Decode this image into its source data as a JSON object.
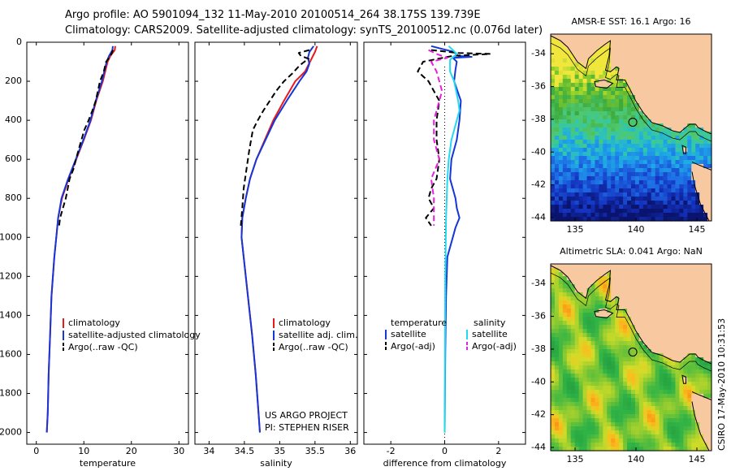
{
  "header": {
    "line1": "Argo profile: AO 5901094_132 11-May-2010 20100514_264 38.175S 139.739E",
    "line2": "Climatology: CARS2009. Satellite-adjusted climatology: synTS_20100512.nc (0.076d later)"
  },
  "stamp": "CSIRO 17-May-2010 10:31:53",
  "colors": {
    "climatology": "#e8191c",
    "satellite": "#1536d8",
    "argo": "#000000",
    "sal_satellite": "#22d9f0",
    "sal_argo": "#e81ee0",
    "land": "#f8c9a0"
  },
  "chart_data": [
    {
      "type": "line",
      "panel": "temperature",
      "xlabel": "temperature",
      "ylabel": "",
      "xlim": [
        -2,
        32
      ],
      "ylim": [
        2060,
        0
      ],
      "y_reversed": true,
      "xticks": [
        "0",
        "10",
        "20",
        "30"
      ],
      "yticks": [
        "0",
        "200",
        "400",
        "600",
        "800",
        "1000",
        "1200",
        "1400",
        "1600",
        "1800",
        "2000"
      ],
      "legend": [
        "climatology",
        "satellite-adjusted climatology",
        "Argo(..raw -QC)"
      ],
      "series": [
        {
          "name": "climatology",
          "color": "#e8191c",
          "dash": "",
          "x": [
            16.6,
            16.5,
            15.6,
            15.0,
            14.0,
            12.6,
            11.5,
            10.0,
            8.4,
            6.8,
            5.4,
            4.6,
            4.2,
            3.8,
            3.2,
            2.9,
            2.6,
            2.4,
            2.2
          ],
          "y": [
            20,
            40,
            70,
            100,
            200,
            300,
            400,
            500,
            600,
            700,
            800,
            900,
            1000,
            1100,
            1300,
            1500,
            1700,
            1900,
            2000
          ]
        },
        {
          "name": "satellite-adjusted climatology",
          "color": "#1536d8",
          "dash": "",
          "x": [
            16.1,
            16.0,
            15.3,
            14.8,
            13.8,
            12.5,
            11.4,
            9.9,
            8.3,
            6.7,
            5.3,
            4.6,
            4.2,
            3.8,
            3.2,
            2.9,
            2.6,
            2.4,
            2.2
          ],
          "y": [
            20,
            40,
            70,
            100,
            200,
            300,
            400,
            500,
            600,
            700,
            800,
            900,
            1000,
            1100,
            1300,
            1500,
            1700,
            1900,
            2000
          ]
        },
        {
          "name": "Argo(..raw -QC)",
          "color": "#000000",
          "dash": "7,4",
          "x": [
            16.1,
            15.9,
            15.3,
            14.7,
            14.2,
            13.4,
            12.5,
            11.8,
            11.0,
            10.1,
            8.9,
            7.8,
            7.0,
            6.2,
            5.6,
            5.0,
            4.8
          ],
          "y": [
            40,
            55,
            80,
            100,
            150,
            200,
            300,
            350,
            400,
            450,
            550,
            650,
            700,
            800,
            850,
            900,
            940
          ]
        }
      ]
    },
    {
      "type": "line",
      "panel": "salinity",
      "xlabel": "salinity",
      "xlim": [
        33.8,
        36.1
      ],
      "ylim": [
        2060,
        0
      ],
      "y_reversed": true,
      "xticks": [
        "34",
        "34.5",
        "35",
        "35.5",
        "36"
      ],
      "legend": [
        "climatology",
        "satellite adj. clim.",
        "Argo(..raw -QC)"
      ],
      "annotation": [
        "US ARGO PROJECT",
        "PI: STEPHEN RISER"
      ],
      "series": [
        {
          "name": "climatology",
          "color": "#e8191c",
          "dash": "",
          "x": [
            35.53,
            35.5,
            35.43,
            35.36,
            35.22,
            35.06,
            34.91,
            34.79,
            34.67,
            34.58,
            34.52,
            34.47,
            34.46,
            34.49,
            34.55,
            34.61,
            34.66,
            34.7,
            34.72
          ],
          "y": [
            20,
            50,
            100,
            150,
            200,
            300,
            400,
            500,
            600,
            700,
            800,
            900,
            1000,
            1100,
            1300,
            1500,
            1700,
            1900,
            2000
          ]
        },
        {
          "name": "satellite adj. clim.",
          "color": "#1536d8",
          "dash": "",
          "x": [
            35.48,
            35.42,
            35.4,
            35.42,
            35.38,
            35.28,
            35.1,
            34.93,
            34.8,
            34.67,
            34.58,
            34.52,
            34.47,
            34.46,
            34.49,
            34.55,
            34.61,
            34.66,
            34.7,
            34.72
          ],
          "y": [
            20,
            50,
            80,
            110,
            150,
            200,
            300,
            400,
            500,
            600,
            700,
            800,
            900,
            1000,
            1100,
            1300,
            1500,
            1700,
            1900,
            2000
          ]
        },
        {
          "name": "Argo(..raw -QC)",
          "color": "#000000",
          "dash": "7,4",
          "x": [
            35.42,
            35.27,
            35.3,
            35.41,
            35.35,
            35.28,
            35.18,
            35.06,
            34.95,
            34.86,
            34.77,
            34.69,
            34.62,
            34.57,
            34.53,
            34.49,
            34.47,
            34.45
          ],
          "y": [
            40,
            55,
            70,
            85,
            100,
            120,
            160,
            200,
            250,
            300,
            350,
            400,
            450,
            550,
            650,
            750,
            850,
            940
          ]
        }
      ]
    },
    {
      "type": "line",
      "panel": "difference",
      "xlabel": "difference from climatology",
      "xlim": [
        -3,
        3
      ],
      "ylim": [
        2060,
        0
      ],
      "y_reversed": true,
      "xticks": [
        "-2",
        "0",
        "2"
      ],
      "legend_left": [
        "temperature",
        "satellite",
        "Argo(-adj)"
      ],
      "legend_right": [
        "salinity",
        "satellite",
        "Argo(-adj)"
      ],
      "series": [
        {
          "name": "temperature satellite",
          "color": "#1536d8",
          "dash": "",
          "x": [
            -0.5,
            0.35,
            0.5,
            1.0,
            0.3,
            0.45,
            0.4,
            0.35,
            0.6,
            0.55,
            0.45,
            0.25,
            0.2,
            0.4,
            0.45,
            0.55,
            0.4,
            0.3,
            0.1,
            0.05,
            0.02,
            0.0
          ],
          "y": [
            20,
            50,
            70,
            75,
            80,
            100,
            140,
            200,
            300,
            400,
            500,
            600,
            700,
            800,
            850,
            900,
            950,
            1000,
            1100,
            1300,
            1600,
            2000
          ]
        },
        {
          "name": "temperature Argo(-adj)",
          "color": "#000000",
          "dash": "7,4",
          "x": [
            -0.5,
            0.5,
            1.7,
            0.3,
            -0.8,
            -1.0,
            -0.6,
            -0.4,
            -0.2,
            -0.3,
            -0.3,
            -0.2,
            -0.3,
            -0.5,
            -0.6,
            -0.4,
            -0.7,
            -0.6,
            -0.5
          ],
          "y": [
            40,
            55,
            60,
            70,
            100,
            150,
            200,
            250,
            300,
            400,
            500,
            600,
            700,
            750,
            800,
            850,
            900,
            920,
            940
          ]
        },
        {
          "name": "salinity satellite",
          "color": "#22d9f0",
          "dash": "",
          "x": [
            0.15,
            0.45,
            0.2,
            0.2,
            0.35,
            0.5,
            0.55,
            0.45,
            0.25,
            0.15,
            0.1,
            0.05,
            0.02,
            0.0
          ],
          "y": [
            20,
            60,
            90,
            150,
            200,
            300,
            350,
            400,
            500,
            600,
            700,
            900,
            1200,
            2000
          ]
        },
        {
          "name": "salinity Argo(-adj)",
          "color": "#e81ee0",
          "dash": "7,4",
          "x": [
            -0.6,
            -0.3,
            0.1,
            -0.5,
            -0.3,
            -0.2,
            -0.1,
            -0.2,
            -0.4,
            -0.4,
            -0.2,
            -0.5,
            -0.4,
            -0.4,
            -0.4
          ],
          "y": [
            40,
            60,
            80,
            100,
            150,
            200,
            250,
            300,
            400,
            500,
            600,
            700,
            800,
            900,
            940
          ]
        }
      ]
    },
    {
      "type": "heatmap",
      "panel": "AMSR-E SST map",
      "title": "AMSR-E SST: 16.1  Argo: 16",
      "xlim": [
        133,
        146.2
      ],
      "ylim": [
        -44.2,
        -32.8
      ],
      "xticks": [
        "135",
        "140",
        "145"
      ],
      "yticks": [
        "-34",
        "-36",
        "-38",
        "-40",
        "-42",
        "-44"
      ],
      "argo_position": {
        "lon": 139.739,
        "lat": -38.175
      }
    },
    {
      "type": "heatmap",
      "panel": "Altimetric SLA map",
      "title": "Altimetric SLA: 0.041  Argo: NaN",
      "xlim": [
        133,
        146.2
      ],
      "ylim": [
        -44.2,
        -32.8
      ],
      "xticks": [
        "135",
        "140",
        "145"
      ],
      "yticks": [
        "-34",
        "-36",
        "-38",
        "-40",
        "-42",
        "-44"
      ],
      "argo_position": {
        "lon": 139.739,
        "lat": -38.175
      }
    }
  ]
}
